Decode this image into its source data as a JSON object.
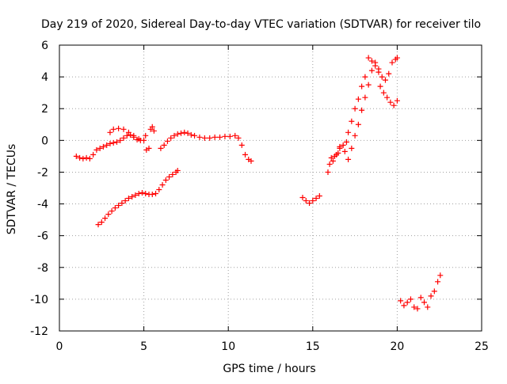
{
  "chart_data": {
    "type": "scatter",
    "title": "Day 219 of 2020, Sidereal Day-to-day VTEC variation (SDTVAR) for receiver tilo",
    "xlabel": "GPS time / hours",
    "ylabel": "SDTVAR / TECUs",
    "xlim": [
      0,
      25
    ],
    "ylim": [
      -12,
      6
    ],
    "xticks": [
      0,
      5,
      10,
      15,
      20,
      25
    ],
    "yticks": [
      -12,
      -10,
      -8,
      -6,
      -4,
      -2,
      0,
      2,
      4,
      6
    ],
    "grid": true,
    "marker": "plus",
    "color": "#ff0000",
    "series": [
      {
        "values": [
          {
            "x": 1.0,
            "y": -1.0
          },
          {
            "x": 1.2,
            "y": -1.1
          },
          {
            "x": 1.4,
            "y": -1.15
          },
          {
            "x": 1.6,
            "y": -1.1
          },
          {
            "x": 1.8,
            "y": -1.15
          },
          {
            "x": 2.0,
            "y": -0.9
          },
          {
            "x": 2.2,
            "y": -0.6
          },
          {
            "x": 2.4,
            "y": -0.5
          },
          {
            "x": 2.6,
            "y": -0.4
          },
          {
            "x": 2.8,
            "y": -0.3
          },
          {
            "x": 3.0,
            "y": -0.2
          },
          {
            "x": 3.2,
            "y": -0.15
          },
          {
            "x": 3.4,
            "y": -0.1
          },
          {
            "x": 3.6,
            "y": 0.0
          },
          {
            "x": 3.8,
            "y": 0.15
          },
          {
            "x": 4.0,
            "y": 0.3
          },
          {
            "x": 4.2,
            "y": 0.35
          },
          {
            "x": 4.4,
            "y": 0.2
          },
          {
            "x": 4.6,
            "y": 0.05
          },
          {
            "x": 4.8,
            "y": 0.0
          }
        ]
      },
      {
        "values": [
          {
            "x": 3.0,
            "y": 0.5
          },
          {
            "x": 3.2,
            "y": 0.7
          },
          {
            "x": 3.5,
            "y": 0.75
          },
          {
            "x": 3.8,
            "y": 0.7
          },
          {
            "x": 4.1,
            "y": 0.5
          },
          {
            "x": 4.4,
            "y": 0.3
          },
          {
            "x": 4.7,
            "y": 0.1
          },
          {
            "x": 5.0,
            "y": 0.0
          },
          {
            "x": 5.15,
            "y": -0.6
          },
          {
            "x": 5.3,
            "y": -0.5
          },
          {
            "x": 5.1,
            "y": 0.3
          },
          {
            "x": 5.4,
            "y": 0.7
          },
          {
            "x": 5.5,
            "y": 0.85
          },
          {
            "x": 5.6,
            "y": 0.6
          }
        ]
      },
      {
        "values": [
          {
            "x": 2.3,
            "y": -5.3
          },
          {
            "x": 2.5,
            "y": -5.15
          },
          {
            "x": 2.7,
            "y": -4.9
          },
          {
            "x": 2.9,
            "y": -4.65
          },
          {
            "x": 3.1,
            "y": -4.45
          },
          {
            "x": 3.3,
            "y": -4.25
          },
          {
            "x": 3.5,
            "y": -4.1
          },
          {
            "x": 3.7,
            "y": -3.95
          },
          {
            "x": 3.9,
            "y": -3.8
          },
          {
            "x": 4.1,
            "y": -3.65
          },
          {
            "x": 4.3,
            "y": -3.55
          },
          {
            "x": 4.5,
            "y": -3.45
          },
          {
            "x": 4.7,
            "y": -3.35
          },
          {
            "x": 4.9,
            "y": -3.3
          },
          {
            "x": 5.1,
            "y": -3.35
          },
          {
            "x": 5.3,
            "y": -3.4
          },
          {
            "x": 5.5,
            "y": -3.4
          },
          {
            "x": 5.7,
            "y": -3.35
          },
          {
            "x": 5.9,
            "y": -3.1
          },
          {
            "x": 6.1,
            "y": -2.8
          },
          {
            "x": 6.3,
            "y": -2.5
          },
          {
            "x": 6.5,
            "y": -2.3
          },
          {
            "x": 6.7,
            "y": -2.15
          },
          {
            "x": 6.9,
            "y": -2.0
          },
          {
            "x": 7.0,
            "y": -1.9
          }
        ]
      },
      {
        "values": [
          {
            "x": 6.0,
            "y": -0.5
          },
          {
            "x": 6.2,
            "y": -0.3
          },
          {
            "x": 6.4,
            "y": -0.05
          },
          {
            "x": 6.6,
            "y": 0.15
          },
          {
            "x": 6.8,
            "y": 0.3
          },
          {
            "x": 7.0,
            "y": 0.4
          },
          {
            "x": 7.2,
            "y": 0.45
          },
          {
            "x": 7.4,
            "y": 0.5
          },
          {
            "x": 7.6,
            "y": 0.45
          },
          {
            "x": 7.8,
            "y": 0.35
          },
          {
            "x": 8.0,
            "y": 0.3
          },
          {
            "x": 8.3,
            "y": 0.2
          },
          {
            "x": 8.6,
            "y": 0.15
          },
          {
            "x": 8.9,
            "y": 0.15
          },
          {
            "x": 9.2,
            "y": 0.2
          },
          {
            "x": 9.5,
            "y": 0.2
          },
          {
            "x": 9.8,
            "y": 0.25
          },
          {
            "x": 10.1,
            "y": 0.25
          },
          {
            "x": 10.4,
            "y": 0.3
          },
          {
            "x": 10.6,
            "y": 0.15
          },
          {
            "x": 10.8,
            "y": -0.3
          },
          {
            "x": 11.0,
            "y": -0.9
          },
          {
            "x": 11.2,
            "y": -1.2
          },
          {
            "x": 11.35,
            "y": -1.3
          }
        ]
      },
      {
        "values": [
          {
            "x": 14.4,
            "y": -3.6
          },
          {
            "x": 14.6,
            "y": -3.8
          },
          {
            "x": 14.8,
            "y": -3.95
          },
          {
            "x": 15.0,
            "y": -3.8
          },
          {
            "x": 15.2,
            "y": -3.65
          },
          {
            "x": 15.4,
            "y": -3.5
          }
        ]
      },
      {
        "values": [
          {
            "x": 15.9,
            "y": -2.0
          },
          {
            "x": 16.0,
            "y": -1.5
          },
          {
            "x": 16.1,
            "y": -1.1
          },
          {
            "x": 16.3,
            "y": -1.0
          },
          {
            "x": 16.5,
            "y": -0.8
          },
          {
            "x": 16.6,
            "y": -0.4
          },
          {
            "x": 16.8,
            "y": -0.3
          },
          {
            "x": 17.0,
            "y": -0.1
          },
          {
            "x": 17.1,
            "y": 0.5
          },
          {
            "x": 17.3,
            "y": 1.2
          },
          {
            "x": 17.5,
            "y": 2.0
          },
          {
            "x": 17.7,
            "y": 2.6
          },
          {
            "x": 17.9,
            "y": 3.4
          },
          {
            "x": 18.1,
            "y": 4.0
          },
          {
            "x": 18.3,
            "y": 5.2
          },
          {
            "x": 18.5,
            "y": 5.0
          },
          {
            "x": 18.7,
            "y": 4.7
          },
          {
            "x": 18.9,
            "y": 4.5
          },
          {
            "x": 19.1,
            "y": 4.0
          },
          {
            "x": 19.3,
            "y": 3.8
          },
          {
            "x": 19.5,
            "y": 4.2
          },
          {
            "x": 19.7,
            "y": 4.9
          },
          {
            "x": 19.9,
            "y": 5.1
          },
          {
            "x": 20.0,
            "y": 5.2
          }
        ]
      },
      {
        "values": [
          {
            "x": 16.2,
            "y": -1.3
          },
          {
            "x": 16.4,
            "y": -0.9
          },
          {
            "x": 16.6,
            "y": -0.5
          },
          {
            "x": 16.9,
            "y": -0.7
          },
          {
            "x": 17.1,
            "y": -1.2
          },
          {
            "x": 17.3,
            "y": -0.5
          },
          {
            "x": 17.5,
            "y": 0.3
          },
          {
            "x": 17.7,
            "y": 1.0
          },
          {
            "x": 17.9,
            "y": 1.9
          },
          {
            "x": 18.1,
            "y": 2.7
          },
          {
            "x": 18.3,
            "y": 3.5
          },
          {
            "x": 18.5,
            "y": 4.4
          },
          {
            "x": 18.7,
            "y": 4.9
          },
          {
            "x": 18.9,
            "y": 4.3
          },
          {
            "x": 19.0,
            "y": 3.4
          },
          {
            "x": 19.2,
            "y": 3.0
          },
          {
            "x": 19.4,
            "y": 2.7
          },
          {
            "x": 19.6,
            "y": 2.4
          },
          {
            "x": 19.8,
            "y": 2.2
          },
          {
            "x": 20.0,
            "y": 2.5
          }
        ]
      },
      {
        "values": [
          {
            "x": 20.2,
            "y": -10.1
          },
          {
            "x": 20.4,
            "y": -10.4
          },
          {
            "x": 20.6,
            "y": -10.2
          },
          {
            "x": 20.8,
            "y": -10.0
          },
          {
            "x": 21.0,
            "y": -10.5
          },
          {
            "x": 21.2,
            "y": -10.6
          },
          {
            "x": 21.4,
            "y": -9.9
          },
          {
            "x": 21.6,
            "y": -10.2
          },
          {
            "x": 21.8,
            "y": -10.5
          },
          {
            "x": 22.0,
            "y": -9.8
          },
          {
            "x": 22.2,
            "y": -9.5
          },
          {
            "x": 22.4,
            "y": -8.9
          },
          {
            "x": 22.55,
            "y": -8.5
          }
        ]
      }
    ]
  }
}
